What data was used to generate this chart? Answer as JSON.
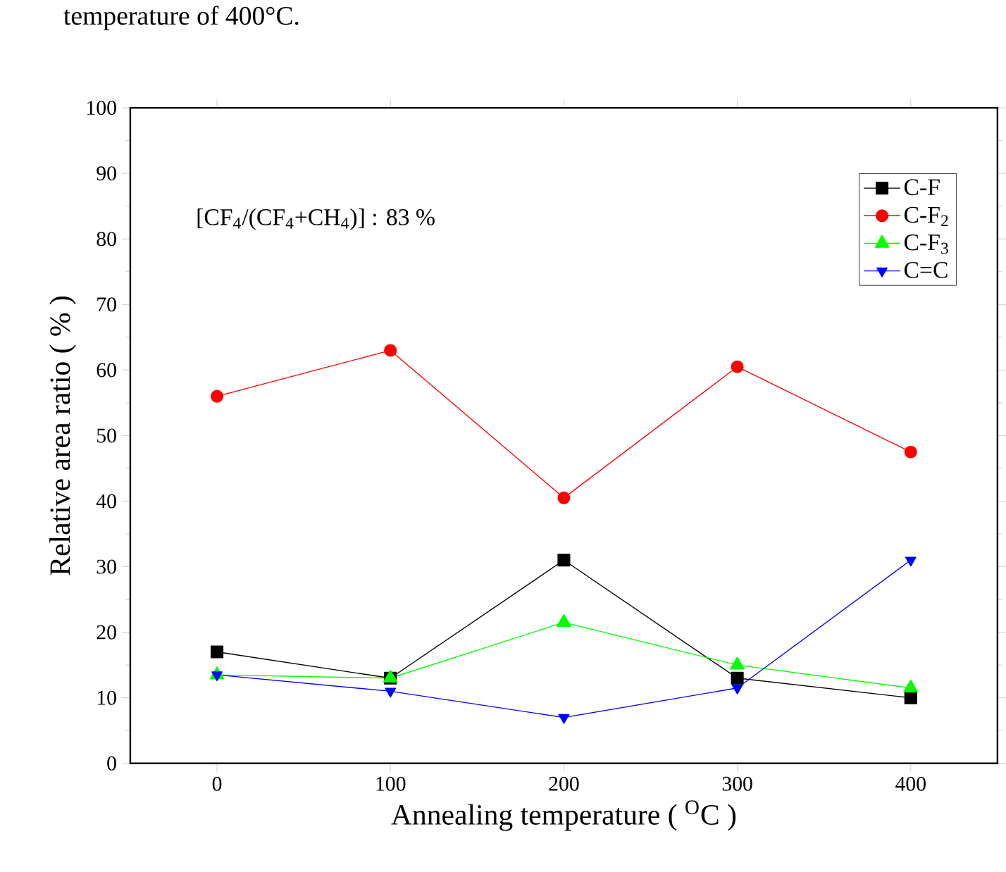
{
  "chart_data": {
    "type": "line",
    "xlabel": "Annealing temperature ( $^{O}$C )",
    "ylabel": "Relative area ratio ( % )",
    "annotations": [
      "temperature of 400°C.",
      "[CF$_{4}$/(CF$_{4}$+CH$_{4}$)] : 83 %"
    ],
    "x": [
      0,
      100,
      200,
      300,
      400
    ],
    "series": [
      {
        "name": "C-F",
        "color": "#000000",
        "marker": "square",
        "values": [
          17,
          13,
          31,
          13,
          10
        ]
      },
      {
        "name": "C-F$_{2}$",
        "color": "#ff0000",
        "marker": "circle",
        "values": [
          56,
          63,
          40.5,
          60.5,
          47.5
        ]
      },
      {
        "name": "C-F$_{3}$",
        "color": "#00ff00",
        "marker": "triangle",
        "values": [
          13.5,
          13,
          21.5,
          15,
          11.5
        ]
      },
      {
        "name": "C=C",
        "color": "#0000ff",
        "marker": "triangle-down",
        "values": [
          13.5,
          11,
          7,
          11.5,
          31
        ]
      }
    ],
    "xlim": [
      -50,
      450
    ],
    "xticks": [
      0,
      100,
      200,
      300,
      400
    ],
    "ylim": [
      0,
      100
    ],
    "yticks": [
      0,
      10,
      20,
      30,
      40,
      50,
      60,
      70,
      80,
      90,
      100
    ],
    "grid": false,
    "legend": "top right",
    "line_style": "solid"
  }
}
